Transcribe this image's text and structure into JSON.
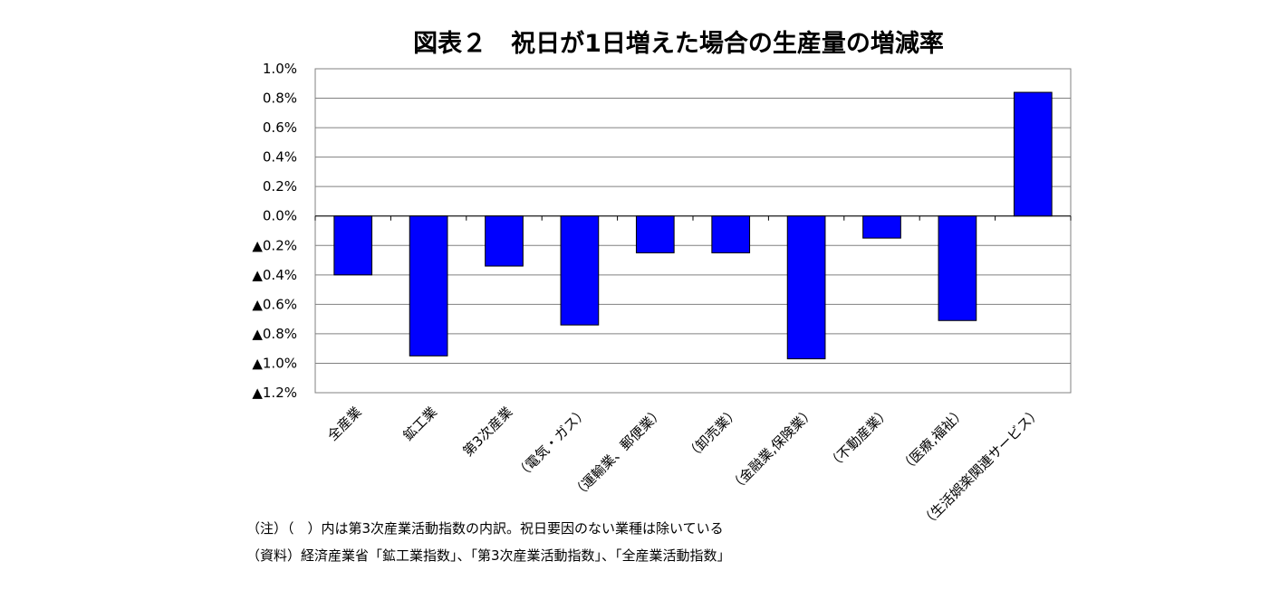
{
  "chart_data": {
    "type": "bar",
    "title": "図表２　祝日が1日増えた場合の生産量の増減率",
    "categories": [
      "全産業",
      "鉱工業",
      "第3次産業",
      "（電気・ガス）",
      "（運輸業、郵便業）",
      "（卸売業）",
      "（金融業,保険業）",
      "（不動産業）",
      "（医療,福祉）",
      "（生活娯楽関連サービス）"
    ],
    "values": [
      -0.4,
      -0.95,
      -0.34,
      -0.74,
      -0.25,
      -0.25,
      -0.97,
      -0.15,
      -0.71,
      0.84
    ],
    "unit": "%",
    "ylim": [
      -1.2,
      1.0
    ],
    "yticks": [
      1.0,
      0.8,
      0.6,
      0.4,
      0.2,
      0.0,
      -0.2,
      -0.4,
      -0.6,
      -0.8,
      -1.0,
      -1.2
    ],
    "ytick_labels": [
      "1.0%",
      "0.8%",
      "0.6%",
      "0.4%",
      "0.2%",
      "0.0%",
      "▲0.2%",
      "▲0.4%",
      "▲0.6%",
      "▲0.8%",
      "▲1.0%",
      "▲1.2%"
    ],
    "xlabel": "",
    "ylabel": "",
    "grid": true,
    "legend": "none",
    "bar_color": "#0000FF",
    "bar_outline_color": "#000000",
    "grid_color": "#808080"
  },
  "notes": {
    "note": "（注）（　）内は第3次産業活動指数の内訳。祝日要因のない業種は除いている",
    "source": "（資料）経済産業省「鉱工業指数」、「第3次産業活動指数」、「全産業活動指数」"
  }
}
